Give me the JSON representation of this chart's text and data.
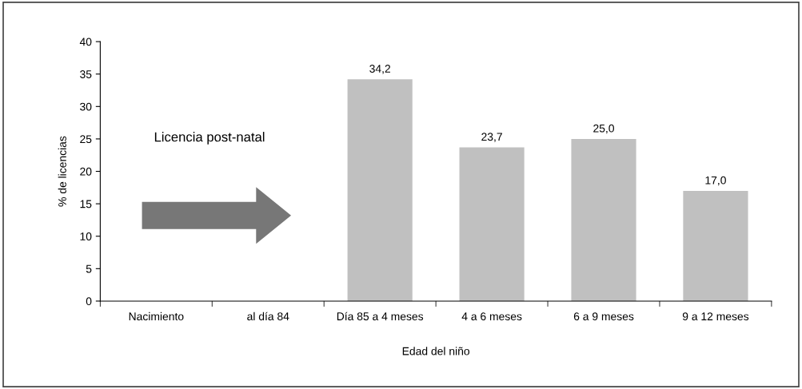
{
  "chart_data": {
    "type": "bar",
    "xlabel": "Edad del niño",
    "ylabel": "% de licencias",
    "categories": [
      "Nacimiento",
      "al día 84",
      "Día 85 a 4 meses",
      "4 a 6 meses",
      "6 a 9 meses",
      "9 a 12 meses"
    ],
    "values": [
      null,
      null,
      34.2,
      23.7,
      25.0,
      17.0
    ],
    "value_labels": [
      null,
      null,
      "34,2",
      "23,7",
      "25,0",
      "17,0"
    ],
    "color": "#c0c0c0",
    "ylim": [
      0,
      40
    ],
    "yticks": [
      0,
      5,
      10,
      15,
      20,
      25,
      30,
      35,
      40
    ],
    "grid": false,
    "annotations": [
      "Licencia post-natal"
    ]
  }
}
